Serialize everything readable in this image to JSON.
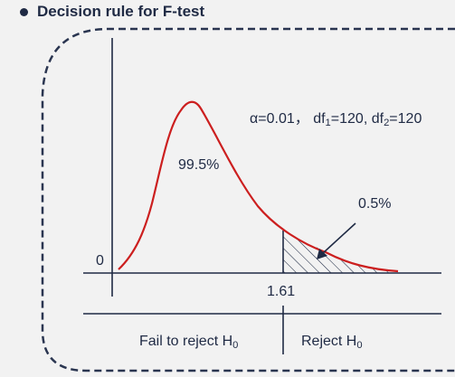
{
  "title": "Decision rule for F-test",
  "params": {
    "alpha": "α=0.01",
    "sep": "，",
    "df1_prefix": "df",
    "df1_sub": "1",
    "df1_value": "=120, ",
    "df2_prefix": "df",
    "df2_sub": "2",
    "df2_value": "=120"
  },
  "labels": {
    "body_pct": "99.5%",
    "tail_pct": "0.5%",
    "origin": "0",
    "critical_value": "1.61"
  },
  "regions": {
    "fail_prefix": "Fail to reject H",
    "fail_sub": "0",
    "reject_prefix": "Reject H",
    "reject_sub": "0"
  },
  "colors": {
    "curve": "#cc1f1f",
    "ink": "#1f2a44",
    "frame": "#2a3550"
  },
  "icons": {
    "bullet": "bullet-dot-icon",
    "arrow": "pointer-arrow-icon"
  }
}
